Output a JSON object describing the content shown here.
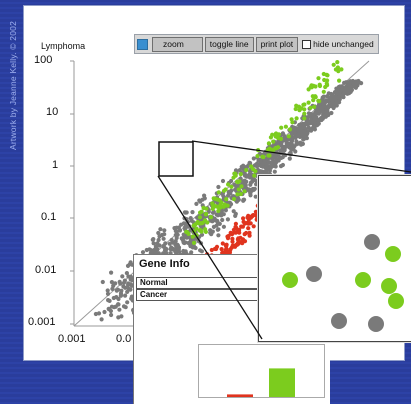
{
  "credit": "Artwork by Jeanne Kelly. © 2002",
  "toolbar": {
    "square_icon": "blue-square-icon",
    "zoom": "zoom",
    "toggle_line": "toggle line",
    "print_plot": "print plot",
    "hide_unchanged": "hide unchanged"
  },
  "axis": {
    "y_title": "Lymphoma",
    "y_ticks": [
      "100",
      "10",
      "1",
      "0.1",
      "0.01",
      "0.001"
    ],
    "x_ticks": [
      "0.001",
      "0.0"
    ]
  },
  "gene_info": {
    "title": "Gene Info",
    "normal": "Normal",
    "cancer": "Cancer"
  },
  "bar_chart": {
    "normal_level": 0.05,
    "cancer_level": 0.55
  },
  "colors": {
    "gray": "#7a7a7a",
    "green": "#7ccc1e",
    "red": "#e0341e",
    "panel_bg": "#2a3d9c"
  }
}
